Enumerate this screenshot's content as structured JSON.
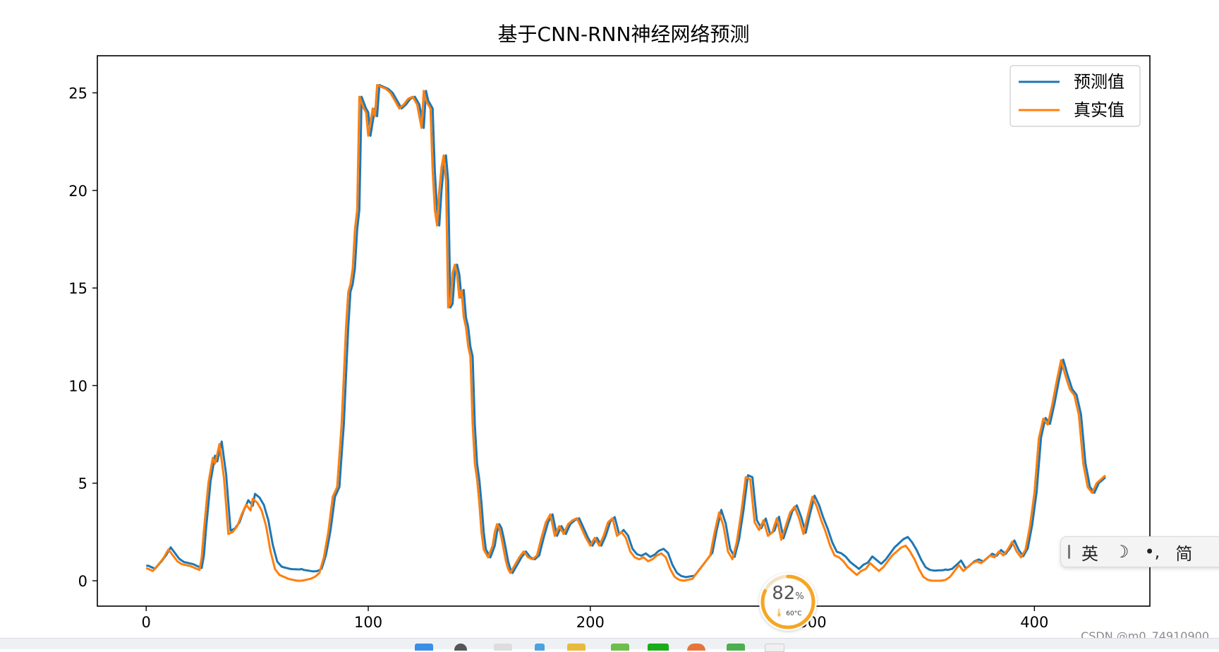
{
  "chart_data": {
    "type": "line",
    "title": "基于CNN-RNN神经网络预测",
    "xlabel": "",
    "ylabel": "",
    "xlim": [
      -22,
      452
    ],
    "ylim": [
      -1.3,
      26.9
    ],
    "xticks": [
      0,
      100,
      200,
      300,
      400
    ],
    "yticks": [
      0,
      5,
      10,
      15,
      20,
      25
    ],
    "grid": false,
    "legend_position": "upper-right",
    "x_key": [
      [
        0,
        0.65
      ],
      [
        3,
        0.5
      ],
      [
        6,
        0.9
      ],
      [
        8,
        1.2
      ],
      [
        10,
        1.6
      ],
      [
        12,
        1.3
      ],
      [
        14,
        1.0
      ],
      [
        16,
        0.85
      ],
      [
        18,
        0.8
      ],
      [
        20,
        0.75
      ],
      [
        22,
        0.65
      ],
      [
        24,
        0.55
      ],
      [
        25,
        1.2
      ],
      [
        26,
        2.6
      ],
      [
        28,
        5.0
      ],
      [
        30,
        6.3
      ],
      [
        31,
        6.0
      ],
      [
        33,
        7.0
      ],
      [
        35,
        5.3
      ],
      [
        37,
        2.4
      ],
      [
        39,
        2.5
      ],
      [
        41,
        2.8
      ],
      [
        43,
        3.4
      ],
      [
        45,
        3.9
      ],
      [
        47,
        3.6
      ],
      [
        48,
        4.2
      ],
      [
        50,
        4.0
      ],
      [
        52,
        3.6
      ],
      [
        54,
        2.8
      ],
      [
        56,
        1.5
      ],
      [
        58,
        0.6
      ],
      [
        60,
        0.3
      ],
      [
        62,
        0.2
      ],
      [
        64,
        0.1
      ],
      [
        66,
        0.05
      ],
      [
        68,
        0.0
      ],
      [
        70,
        0.0
      ],
      [
        72,
        0.05
      ],
      [
        74,
        0.1
      ],
      [
        76,
        0.2
      ],
      [
        78,
        0.4
      ],
      [
        80,
        1.2
      ],
      [
        82,
        2.5
      ],
      [
        84,
        4.3
      ],
      [
        86,
        4.8
      ],
      [
        88,
        8.0
      ],
      [
        90,
        13.0
      ],
      [
        91,
        14.8
      ],
      [
        92,
        15.2
      ],
      [
        93,
        16.0
      ],
      [
        94,
        18.0
      ],
      [
        95,
        19.0
      ],
      [
        96,
        24.8
      ],
      [
        97,
        24.5
      ],
      [
        98,
        24.2
      ],
      [
        99,
        24.0
      ],
      [
        100,
        22.8
      ],
      [
        101,
        23.5
      ],
      [
        102,
        24.2
      ],
      [
        103,
        23.8
      ],
      [
        104,
        25.4
      ],
      [
        106,
        25.3
      ],
      [
        108,
        25.2
      ],
      [
        110,
        25.0
      ],
      [
        112,
        24.6
      ],
      [
        114,
        24.2
      ],
      [
        116,
        24.4
      ],
      [
        118,
        24.7
      ],
      [
        120,
        24.8
      ],
      [
        122,
        24.4
      ],
      [
        124,
        23.2
      ],
      [
        125,
        25.1
      ],
      [
        126,
        24.6
      ],
      [
        128,
        24.2
      ],
      [
        129,
        21.0
      ],
      [
        130,
        19.0
      ],
      [
        131,
        18.2
      ],
      [
        132,
        20.0
      ],
      [
        133,
        21.2
      ],
      [
        134,
        21.8
      ],
      [
        135,
        20.5
      ],
      [
        136,
        14.0
      ],
      [
        137,
        14.2
      ],
      [
        138,
        15.8
      ],
      [
        139,
        16.2
      ],
      [
        140,
        15.7
      ],
      [
        141,
        14.5
      ],
      [
        142,
        14.9
      ],
      [
        143,
        13.5
      ],
      [
        144,
        13.0
      ],
      [
        145,
        12.0
      ],
      [
        146,
        11.5
      ],
      [
        147,
        8.0
      ],
      [
        148,
        6.0
      ],
      [
        149,
        5.2
      ],
      [
        150,
        4.0
      ],
      [
        151,
        2.5
      ],
      [
        152,
        1.6
      ],
      [
        153,
        1.4
      ],
      [
        154,
        1.2
      ],
      [
        155,
        1.5
      ],
      [
        156,
        1.8
      ],
      [
        157,
        2.5
      ],
      [
        158,
        2.9
      ],
      [
        159,
        2.7
      ],
      [
        160,
        2.2
      ],
      [
        161,
        1.6
      ],
      [
        162,
        1.0
      ],
      [
        163,
        0.6
      ],
      [
        164,
        0.4
      ],
      [
        166,
        0.8
      ],
      [
        168,
        1.2
      ],
      [
        170,
        1.5
      ],
      [
        172,
        1.2
      ],
      [
        174,
        1.1
      ],
      [
        176,
        1.3
      ],
      [
        178,
        2.2
      ],
      [
        180,
        3.0
      ],
      [
        182,
        3.4
      ],
      [
        184,
        2.3
      ],
      [
        186,
        2.8
      ],
      [
        188,
        2.4
      ],
      [
        190,
        2.9
      ],
      [
        192,
        3.1
      ],
      [
        194,
        3.2
      ],
      [
        196,
        2.7
      ],
      [
        198,
        2.2
      ],
      [
        200,
        1.8
      ],
      [
        202,
        2.2
      ],
      [
        204,
        1.8
      ],
      [
        206,
        2.3
      ],
      [
        208,
        3.0
      ],
      [
        210,
        3.2
      ],
      [
        212,
        2.3
      ],
      [
        214,
        2.5
      ],
      [
        216,
        2.2
      ],
      [
        218,
        1.5
      ],
      [
        220,
        1.2
      ],
      [
        222,
        1.1
      ],
      [
        224,
        1.2
      ],
      [
        226,
        1.0
      ],
      [
        228,
        1.1
      ],
      [
        230,
        1.3
      ],
      [
        232,
        1.4
      ],
      [
        234,
        1.2
      ],
      [
        236,
        0.6
      ],
      [
        238,
        0.2
      ],
      [
        240,
        0.05
      ],
      [
        242,
        0.0
      ],
      [
        244,
        0.05
      ],
      [
        246,
        0.1
      ],
      [
        248,
        0.4
      ],
      [
        250,
        0.7
      ],
      [
        252,
        1.0
      ],
      [
        254,
        1.3
      ],
      [
        256,
        2.5
      ],
      [
        258,
        3.5
      ],
      [
        260,
        2.8
      ],
      [
        262,
        1.5
      ],
      [
        264,
        1.1
      ],
      [
        266,
        2.0
      ],
      [
        268,
        3.5
      ],
      [
        270,
        5.3
      ],
      [
        272,
        5.2
      ],
      [
        274,
        3.0
      ],
      [
        276,
        2.6
      ],
      [
        278,
        3.1
      ],
      [
        280,
        2.3
      ],
      [
        282,
        2.5
      ],
      [
        284,
        3.2
      ],
      [
        286,
        2.1
      ],
      [
        288,
        2.8
      ],
      [
        290,
        3.5
      ],
      [
        292,
        3.8
      ],
      [
        294,
        3.2
      ],
      [
        296,
        2.4
      ],
      [
        298,
        3.4
      ],
      [
        300,
        4.3
      ],
      [
        302,
        3.8
      ],
      [
        304,
        3.1
      ],
      [
        306,
        2.5
      ],
      [
        308,
        1.8
      ],
      [
        310,
        1.3
      ],
      [
        312,
        1.2
      ],
      [
        314,
        1.0
      ],
      [
        316,
        0.7
      ],
      [
        318,
        0.5
      ],
      [
        320,
        0.3
      ],
      [
        322,
        0.5
      ],
      [
        324,
        0.6
      ],
      [
        326,
        0.9
      ],
      [
        328,
        0.7
      ],
      [
        330,
        0.5
      ],
      [
        332,
        0.7
      ],
      [
        334,
        1.0
      ],
      [
        336,
        1.3
      ],
      [
        338,
        1.5
      ],
      [
        340,
        1.7
      ],
      [
        342,
        1.8
      ],
      [
        344,
        1.5
      ],
      [
        346,
        1.1
      ],
      [
        348,
        0.6
      ],
      [
        350,
        0.2
      ],
      [
        352,
        0.05
      ],
      [
        354,
        0.0
      ],
      [
        356,
        0.0
      ],
      [
        358,
        0.0
      ],
      [
        360,
        0.05
      ],
      [
        362,
        0.2
      ],
      [
        364,
        0.5
      ],
      [
        366,
        0.8
      ],
      [
        368,
        0.5
      ],
      [
        370,
        0.7
      ],
      [
        372,
        0.9
      ],
      [
        374,
        1.0
      ],
      [
        376,
        0.9
      ],
      [
        378,
        1.1
      ],
      [
        380,
        1.3
      ],
      [
        382,
        1.2
      ],
      [
        384,
        1.5
      ],
      [
        386,
        1.3
      ],
      [
        388,
        1.6
      ],
      [
        390,
        2.0
      ],
      [
        392,
        1.5
      ],
      [
        394,
        1.2
      ],
      [
        396,
        1.6
      ],
      [
        398,
        2.8
      ],
      [
        400,
        4.5
      ],
      [
        402,
        7.3
      ],
      [
        404,
        8.3
      ],
      [
        406,
        8.0
      ],
      [
        408,
        9.0
      ],
      [
        410,
        10.2
      ],
      [
        412,
        11.3
      ],
      [
        414,
        10.5
      ],
      [
        416,
        9.8
      ],
      [
        418,
        9.5
      ],
      [
        420,
        8.5
      ],
      [
        422,
        6.0
      ],
      [
        424,
        4.8
      ],
      [
        426,
        4.5
      ],
      [
        428,
        5.0
      ],
      [
        430,
        5.2
      ],
      [
        432,
        5.4
      ]
    ],
    "series": [
      {
        "name": "预测值",
        "color": "#1f77b4",
        "lag": 1,
        "offset": [
          [
            0,
            0.12
          ],
          [
            30,
            0.1
          ],
          [
            55,
            0.3
          ],
          [
            70,
            0.6
          ],
          [
            78,
            0.25
          ],
          [
            85,
            0.0
          ],
          [
            205,
            0.0
          ],
          [
            230,
            0.25
          ],
          [
            250,
            0.15
          ],
          [
            300,
            0.05
          ],
          [
            320,
            0.3
          ],
          [
            360,
            0.55
          ],
          [
            370,
            0.1
          ],
          [
            432,
            0.0
          ]
        ]
      },
      {
        "name": "真实值",
        "color": "#ff7f0e",
        "lag": 0,
        "offset": [
          [
            0,
            0.0
          ],
          [
            432,
            0.0
          ]
        ]
      }
    ]
  },
  "ime_toolbar": {
    "items": [
      "英",
      "☽",
      "•,",
      "简"
    ]
  },
  "gauge": {
    "value": "82",
    "unit": "%",
    "temperature": "60°C",
    "level": 0.82,
    "color": "#f5a623"
  },
  "watermark": "CSDN @m0_74910900"
}
